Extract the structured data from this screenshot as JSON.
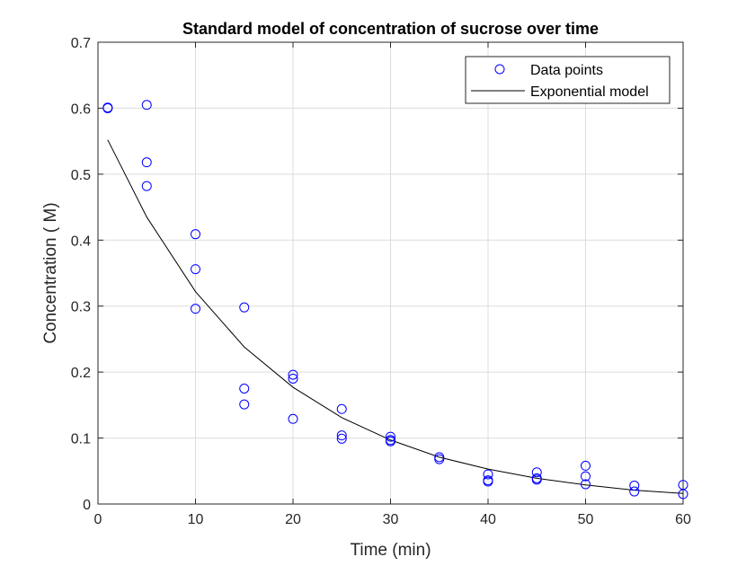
{
  "chart_data": {
    "type": "scatter",
    "title": "Standard model of concentration of sucrose over time",
    "xlabel": "Time (min)",
    "ylabel": "Concentration ( M)",
    "xlim": [
      0,
      60
    ],
    "ylim": [
      0,
      0.7
    ],
    "xticks": [
      0,
      10,
      20,
      30,
      40,
      50,
      60
    ],
    "yticks": [
      0,
      0.1,
      0.2,
      0.3,
      0.4,
      0.5,
      0.6,
      0.7
    ],
    "xtick_labels": [
      "0",
      "10",
      "20",
      "30",
      "40",
      "50",
      "60"
    ],
    "ytick_labels": [
      "0",
      "0.1",
      "0.2",
      "0.3",
      "0.4",
      "0.5",
      "0.6",
      "0.7"
    ],
    "grid": true,
    "legend": "top-right",
    "series": [
      {
        "name": "Data points",
        "kind": "markers",
        "marker": "circle",
        "color": "#0000ff",
        "x": [
          1,
          1,
          5,
          5,
          5,
          10,
          10,
          10,
          15,
          15,
          15,
          20,
          20,
          20,
          25,
          25,
          25,
          30,
          30,
          30,
          35,
          35,
          40,
          40,
          40,
          45,
          45,
          45,
          50,
          50,
          50,
          55,
          55,
          60,
          60
        ],
        "y": [
          0.6,
          0.601,
          0.605,
          0.518,
          0.482,
          0.409,
          0.356,
          0.296,
          0.298,
          0.175,
          0.151,
          0.196,
          0.19,
          0.129,
          0.144,
          0.104,
          0.099,
          0.102,
          0.097,
          0.095,
          0.071,
          0.068,
          0.045,
          0.036,
          0.034,
          0.048,
          0.039,
          0.037,
          0.058,
          0.042,
          0.03,
          0.028,
          0.019,
          0.029,
          0.015
        ]
      },
      {
        "name": "Exponential model",
        "kind": "line",
        "color": "#000000",
        "x": [
          1,
          5,
          10,
          15,
          20,
          25,
          30,
          35,
          40,
          45,
          50,
          55,
          60
        ],
        "y": [
          0.552,
          0.435,
          0.322,
          0.238,
          0.177,
          0.131,
          0.097,
          0.071,
          0.053,
          0.039,
          0.029,
          0.021,
          0.016
        ]
      }
    ]
  }
}
